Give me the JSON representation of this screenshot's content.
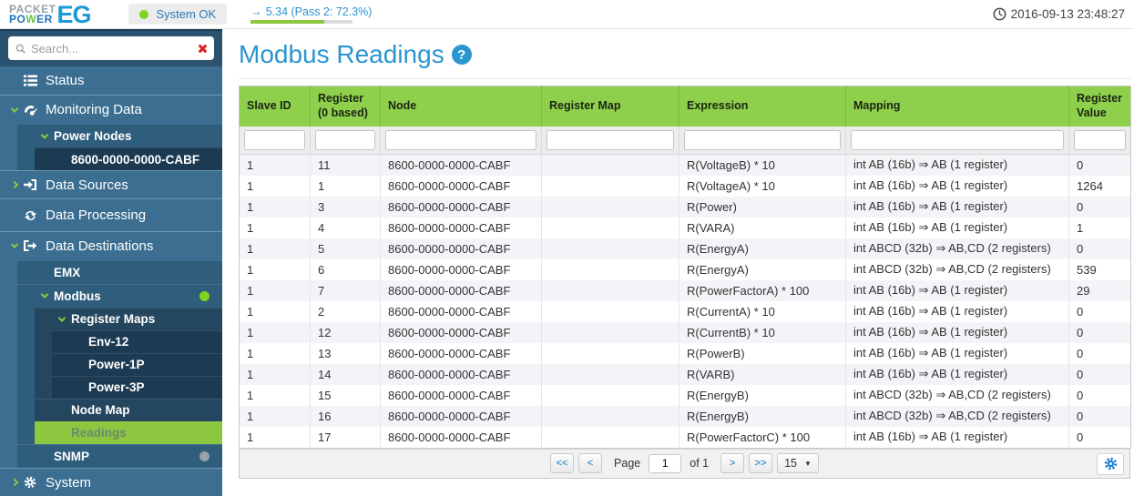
{
  "header": {
    "logo_line1": "PACKET",
    "logo_line2_a": "PO",
    "logo_line2_b": "W",
    "logo_line2_c": "ER",
    "logo_badge": "EG",
    "status_badge": "System OK",
    "version_arrow": "→",
    "version_link": "5.34 (Pass 2: 72.3%)",
    "version_progress_pct": 72.3,
    "timestamp": "2016-09-13 23:48:27"
  },
  "sidebar": {
    "search_placeholder": "Search...",
    "items": {
      "status": "Status",
      "monitoring_data": "Monitoring Data",
      "power_nodes": "Power Nodes",
      "node_8600": "8600-0000-0000-CABF",
      "data_sources": "Data Sources",
      "data_processing": "Data Processing",
      "data_destinations": "Data Destinations",
      "emx": "EMX",
      "modbus": "Modbus",
      "register_maps": "Register Maps",
      "env_12": "Env-12",
      "power_1p": "Power-1P",
      "power_3p": "Power-3P",
      "node_map": "Node Map",
      "readings": "Readings",
      "snmp": "SNMP",
      "system": "System"
    }
  },
  "main": {
    "title": "Modbus Readings",
    "help_icon": "?",
    "table": {
      "columns": [
        "Slave ID",
        "Register (0 based)",
        "Node",
        "Register Map",
        "Expression",
        "Mapping",
        "Register Value"
      ],
      "rows": [
        [
          "1",
          "11",
          "8600-0000-0000-CABF",
          "",
          "R(VoltageB) * 10",
          "int AB (16b) ⇒ AB (1 register)",
          "0"
        ],
        [
          "1",
          "1",
          "8600-0000-0000-CABF",
          "",
          "R(VoltageA) * 10",
          "int AB (16b) ⇒ AB (1 register)",
          "1264"
        ],
        [
          "1",
          "3",
          "8600-0000-0000-CABF",
          "",
          "R(Power)",
          "int AB (16b) ⇒ AB (1 register)",
          "0"
        ],
        [
          "1",
          "4",
          "8600-0000-0000-CABF",
          "",
          "R(VARA)",
          "int AB (16b) ⇒ AB (1 register)",
          "1"
        ],
        [
          "1",
          "5",
          "8600-0000-0000-CABF",
          "",
          "R(EnergyA)",
          "int ABCD (32b) ⇒ AB,CD (2 registers)",
          "0"
        ],
        [
          "1",
          "6",
          "8600-0000-0000-CABF",
          "",
          "R(EnergyA)",
          "int ABCD (32b) ⇒ AB,CD (2 registers)",
          "539"
        ],
        [
          "1",
          "7",
          "8600-0000-0000-CABF",
          "",
          "R(PowerFactorA) * 100",
          "int AB (16b) ⇒ AB (1 register)",
          "29"
        ],
        [
          "1",
          "2",
          "8600-0000-0000-CABF",
          "",
          "R(CurrentA) * 10",
          "int AB (16b) ⇒ AB (1 register)",
          "0"
        ],
        [
          "1",
          "12",
          "8600-0000-0000-CABF",
          "",
          "R(CurrentB) * 10",
          "int AB (16b) ⇒ AB (1 register)",
          "0"
        ],
        [
          "1",
          "13",
          "8600-0000-0000-CABF",
          "",
          "R(PowerB)",
          "int AB (16b) ⇒ AB (1 register)",
          "0"
        ],
        [
          "1",
          "14",
          "8600-0000-0000-CABF",
          "",
          "R(VARB)",
          "int AB (16b) ⇒ AB (1 register)",
          "0"
        ],
        [
          "1",
          "15",
          "8600-0000-0000-CABF",
          "",
          "R(EnergyB)",
          "int ABCD (32b) ⇒ AB,CD (2 registers)",
          "0"
        ],
        [
          "1",
          "16",
          "8600-0000-0000-CABF",
          "",
          "R(EnergyB)",
          "int ABCD (32b) ⇒ AB,CD (2 registers)",
          "0"
        ],
        [
          "1",
          "17",
          "8600-0000-0000-CABF",
          "",
          "R(PowerFactorC) * 100",
          "int AB (16b) ⇒ AB (1 register)",
          "0"
        ]
      ]
    },
    "pagination": {
      "first": "<<",
      "prev": "<",
      "page_label": "Page",
      "current_page": "1",
      "of_label": "of 1",
      "next": ">",
      "last": ">>",
      "page_size": "15",
      "caret": "▼"
    }
  },
  "colors": {
    "accent_blue": "#2a95d1",
    "table_header_green": "#8ed04b",
    "selected_green": "#8dc63f",
    "sidebar_blue": "#3b6e90",
    "status_dot_green": "#7ed321",
    "snmp_dot_gray": "#9aa0a6",
    "progress_green": "#8dc63f"
  }
}
